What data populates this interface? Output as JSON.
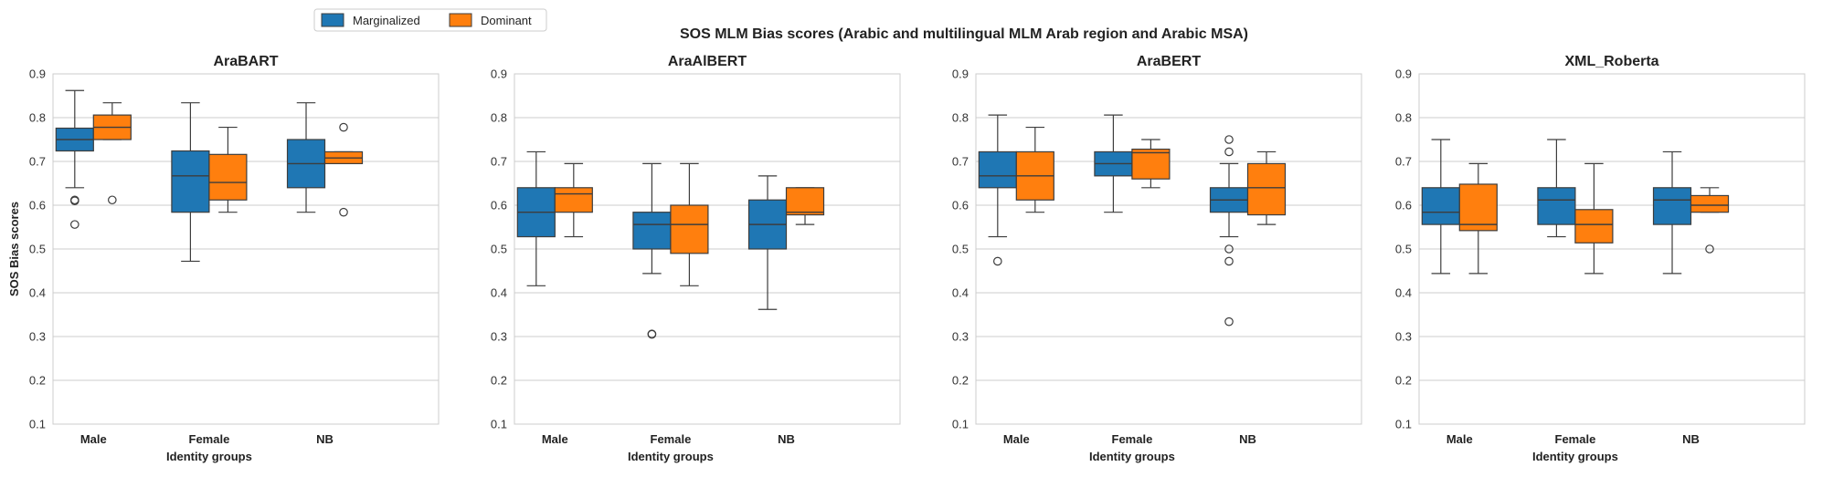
{
  "figure_title": "SOS MLM Bias scores (Arabic and multilingual MLM Arab region and Arabic MSA)",
  "chart_data": [
    {
      "type": "box",
      "title": "AraBART",
      "xlabel": "Identity groups",
      "ylabel": "SOS Bias scores",
      "ylim": [
        0.1,
        0.9
      ],
      "yticks": [
        "0.1",
        "0.2",
        "0.3",
        "0.4",
        "0.5",
        "0.6",
        "0.7",
        "0.8",
        "0.9"
      ],
      "categories": [
        "Male",
        "Female",
        "NB"
      ],
      "series": [
        {
          "name": "Marginalized",
          "color": "#1f77b4",
          "boxes": [
            {
              "whislo": 0.64,
              "q1": 0.724,
              "med": 0.75,
              "q3": 0.776,
              "whishi": 0.862,
              "fliers": [
                0.612,
                0.61,
                0.556
              ]
            },
            {
              "whislo": 0.472,
              "q1": 0.584,
              "med": 0.667,
              "q3": 0.724,
              "whishi": 0.834,
              "fliers": []
            },
            {
              "whislo": 0.584,
              "q1": 0.64,
              "med": 0.695,
              "q3": 0.75,
              "whishi": 0.834,
              "fliers": []
            }
          ]
        },
        {
          "name": "Dominant",
          "color": "#ff7f0e",
          "boxes": [
            {
              "whislo": 0.75,
              "q1": 0.75,
              "med": 0.778,
              "q3": 0.806,
              "whishi": 0.834,
              "fliers": [
                0.612
              ]
            },
            {
              "whislo": 0.584,
              "q1": 0.612,
              "med": 0.652,
              "q3": 0.716,
              "whishi": 0.778,
              "fliers": []
            },
            {
              "whislo": 0.695,
              "q1": 0.695,
              "med": 0.708,
              "q3": 0.722,
              "whishi": 0.722,
              "fliers": [
                0.778,
                0.584
              ]
            }
          ]
        }
      ]
    },
    {
      "type": "box",
      "title": "AraAlBERT",
      "xlabel": "Identity groups",
      "ylabel": "",
      "ylim": [
        0.1,
        0.9
      ],
      "yticks": [
        "0.1",
        "0.2",
        "0.3",
        "0.4",
        "0.5",
        "0.6",
        "0.7",
        "0.8",
        "0.9"
      ],
      "categories": [
        "Male",
        "Female",
        "NB"
      ],
      "series": [
        {
          "name": "Marginalized",
          "color": "#1f77b4",
          "boxes": [
            {
              "whislo": 0.416,
              "q1": 0.528,
              "med": 0.584,
              "q3": 0.64,
              "whishi": 0.722,
              "fliers": []
            },
            {
              "whislo": 0.444,
              "q1": 0.5,
              "med": 0.556,
              "q3": 0.584,
              "whishi": 0.695,
              "fliers": [
                0.306,
                0.305
              ]
            },
            {
              "whislo": 0.362,
              "q1": 0.5,
              "med": 0.556,
              "q3": 0.612,
              "whishi": 0.667,
              "fliers": []
            }
          ]
        },
        {
          "name": "Dominant",
          "color": "#ff7f0e",
          "boxes": [
            {
              "whislo": 0.528,
              "q1": 0.584,
              "med": 0.626,
              "q3": 0.64,
              "whishi": 0.695,
              "fliers": []
            },
            {
              "whislo": 0.416,
              "q1": 0.49,
              "med": 0.556,
              "q3": 0.6,
              "whishi": 0.695,
              "fliers": []
            },
            {
              "whislo": 0.556,
              "q1": 0.578,
              "med": 0.584,
              "q3": 0.64,
              "whishi": 0.64,
              "fliers": []
            }
          ]
        }
      ]
    },
    {
      "type": "box",
      "title": "AraBERT",
      "xlabel": "Identity groups",
      "ylabel": "",
      "ylim": [
        0.1,
        0.9
      ],
      "yticks": [
        "0.1",
        "0.2",
        "0.3",
        "0.4",
        "0.5",
        "0.6",
        "0.7",
        "0.8",
        "0.9"
      ],
      "categories": [
        "Male",
        "Female",
        "NB"
      ],
      "series": [
        {
          "name": "Marginalized",
          "color": "#1f77b4",
          "boxes": [
            {
              "whislo": 0.528,
              "q1": 0.64,
              "med": 0.667,
              "q3": 0.722,
              "whishi": 0.806,
              "fliers": [
                0.472
              ]
            },
            {
              "whislo": 0.584,
              "q1": 0.667,
              "med": 0.695,
              "q3": 0.722,
              "whishi": 0.806,
              "fliers": []
            },
            {
              "whislo": 0.528,
              "q1": 0.584,
              "med": 0.612,
              "q3": 0.64,
              "whishi": 0.695,
              "fliers": [
                0.75,
                0.722,
                0.5,
                0.472,
                0.334
              ]
            }
          ]
        },
        {
          "name": "Dominant",
          "color": "#ff7f0e",
          "boxes": [
            {
              "whislo": 0.584,
              "q1": 0.612,
              "med": 0.667,
              "q3": 0.722,
              "whishi": 0.778,
              "fliers": []
            },
            {
              "whislo": 0.64,
              "q1": 0.66,
              "med": 0.72,
              "q3": 0.728,
              "whishi": 0.75,
              "fliers": []
            },
            {
              "whislo": 0.556,
              "q1": 0.578,
              "med": 0.64,
              "q3": 0.695,
              "whishi": 0.722,
              "fliers": []
            }
          ]
        }
      ]
    },
    {
      "type": "box",
      "title": "XML_Roberta",
      "xlabel": "Identity groups",
      "ylabel": "",
      "ylim": [
        0.1,
        0.9
      ],
      "yticks": [
        "0.1",
        "0.2",
        "0.3",
        "0.4",
        "0.5",
        "0.6",
        "0.7",
        "0.8",
        "0.9"
      ],
      "categories": [
        "Male",
        "Female",
        "NB"
      ],
      "series": [
        {
          "name": "Marginalized",
          "color": "#1f77b4",
          "boxes": [
            {
              "whislo": 0.444,
              "q1": 0.556,
              "med": 0.584,
              "q3": 0.64,
              "whishi": 0.75,
              "fliers": []
            },
            {
              "whislo": 0.528,
              "q1": 0.556,
              "med": 0.612,
              "q3": 0.64,
              "whishi": 0.75,
              "fliers": []
            },
            {
              "whislo": 0.444,
              "q1": 0.556,
              "med": 0.612,
              "q3": 0.64,
              "whishi": 0.722,
              "fliers": []
            }
          ]
        },
        {
          "name": "Dominant",
          "color": "#ff7f0e",
          "boxes": [
            {
              "whislo": 0.444,
              "q1": 0.542,
              "med": 0.556,
              "q3": 0.648,
              "whishi": 0.695,
              "fliers": []
            },
            {
              "whislo": 0.444,
              "q1": 0.514,
              "med": 0.556,
              "q3": 0.59,
              "whishi": 0.695,
              "fliers": []
            },
            {
              "whislo": 0.584,
              "q1": 0.584,
              "med": 0.6,
              "q3": 0.622,
              "whishi": 0.64,
              "fliers": [
                0.5
              ]
            }
          ]
        }
      ]
    }
  ],
  "legend": {
    "placement": "top-left",
    "items": [
      {
        "label": "Marginalized",
        "color": "#1f77b4"
      },
      {
        "label": "Dominant",
        "color": "#ff7f0e"
      }
    ]
  },
  "colors": {
    "grid": "#cccccc",
    "spine": "#cccccc",
    "whisker": "#3d3d3d",
    "background": "#ffffff"
  }
}
